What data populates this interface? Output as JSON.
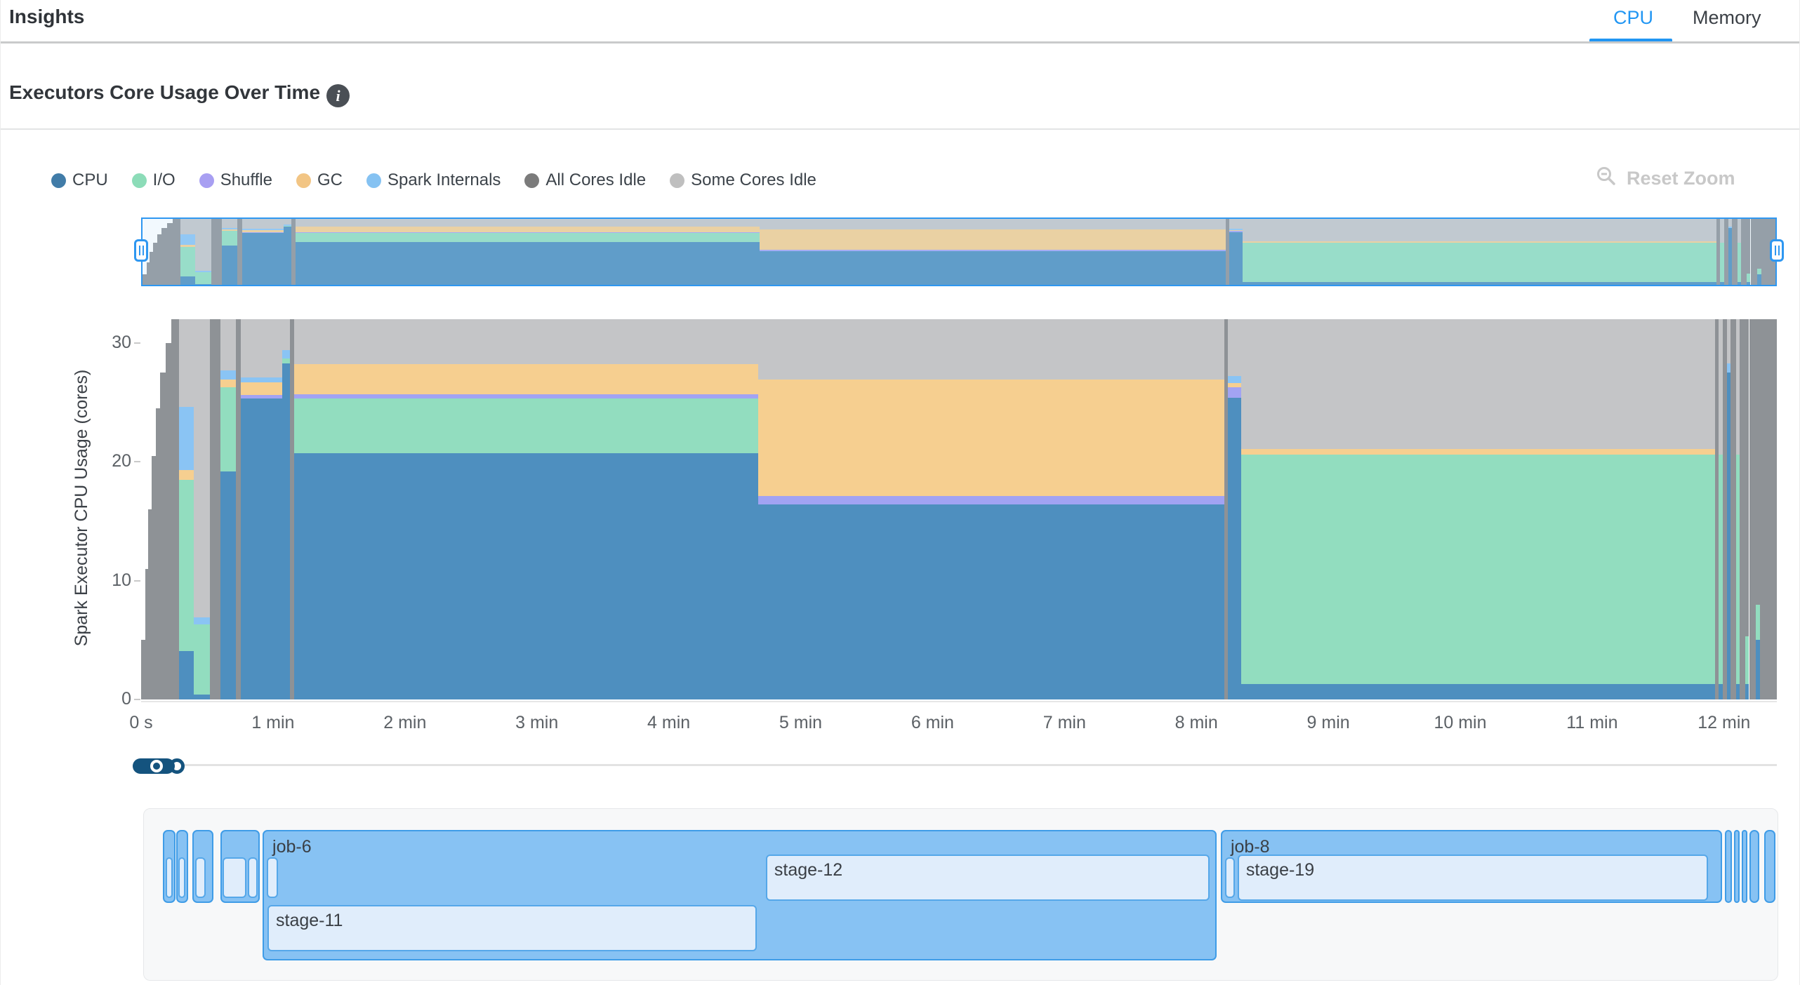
{
  "header": {
    "title": "Insights",
    "tabs": [
      {
        "label": "CPU",
        "active": true
      },
      {
        "label": "Memory",
        "active": false
      }
    ]
  },
  "section": {
    "title": "Executors Core Usage Over Time",
    "info_glyph": "i"
  },
  "toolbar": {
    "reset_zoom_label": "Reset Zoom"
  },
  "colors": {
    "accent_blue": "#2196f3",
    "brush_border": "#2e97f1",
    "toggle": "#14537e",
    "job_fill": "#87c2f3",
    "job_border": "#3f9ce7",
    "stage_fill": "#e0edfb",
    "stage_border": "#55a7e9"
  },
  "chart_data": {
    "type": "area",
    "stacked": true,
    "title": "Executors Core Usage Over Time",
    "ylabel": "Spark Executor CPU Usage (cores)",
    "xlabel": "",
    "ylim": [
      0,
      32
    ],
    "total_cores": 32,
    "grid": false,
    "legend_position": "top-left",
    "yticks": [
      0,
      10,
      20,
      30
    ],
    "xticks": [
      {
        "min": 0,
        "label": "0 s"
      },
      {
        "min": 1,
        "label": "1 min"
      },
      {
        "min": 2,
        "label": "2 min"
      },
      {
        "min": 3,
        "label": "3 min"
      },
      {
        "min": 4,
        "label": "4 min"
      },
      {
        "min": 5,
        "label": "5 min"
      },
      {
        "min": 6,
        "label": "6 min"
      },
      {
        "min": 7,
        "label": "7 min"
      },
      {
        "min": 8,
        "label": "8 min"
      },
      {
        "min": 9,
        "label": "9 min"
      },
      {
        "min": 10,
        "label": "10 min"
      },
      {
        "min": 11,
        "label": "11 min"
      },
      {
        "min": 12,
        "label": "12 min"
      }
    ],
    "series": [
      {
        "key": "cpu",
        "name": "CPU",
        "color": "#4e8fbf",
        "legend_color": "#417ca8"
      },
      {
        "key": "io",
        "name": "I/O",
        "color": "#92ddbf",
        "legend_color": "#8cdcb8"
      },
      {
        "key": "shuffle",
        "name": "Shuffle",
        "color": "#a2a3f3",
        "legend_color": "#a89ff2"
      },
      {
        "key": "gc",
        "name": "GC",
        "color": "#f6cf90",
        "legend_color": "#f2c584"
      },
      {
        "key": "internals",
        "name": "Spark Internals",
        "color": "#8ac4f4",
        "legend_color": "#85c2f2"
      },
      {
        "key": "all_idle",
        "name": "All Cores Idle",
        "color": "#8e9296",
        "legend_color": "#7b7b7b"
      },
      {
        "key": "some_idle",
        "name": "Some Cores Idle",
        "color": "#c4c5c7",
        "legend_color": "#bfbfbf"
      }
    ],
    "segments": [
      {
        "start": 0.0,
        "end": 0.03,
        "values": {
          "all_idle": 5
        }
      },
      {
        "start": 0.03,
        "end": 0.055,
        "values": {
          "all_idle": 11
        }
      },
      {
        "start": 0.055,
        "end": 0.08,
        "values": {
          "all_idle": 16
        }
      },
      {
        "start": 0.08,
        "end": 0.11,
        "values": {
          "all_idle": 20.5
        }
      },
      {
        "start": 0.11,
        "end": 0.145,
        "values": {
          "all_idle": 24.5
        }
      },
      {
        "start": 0.145,
        "end": 0.185,
        "values": {
          "all_idle": 27.5
        }
      },
      {
        "start": 0.185,
        "end": 0.23,
        "values": {
          "all_idle": 30
        }
      },
      {
        "start": 0.23,
        "end": 0.29,
        "values": {
          "all_idle": 32
        }
      },
      {
        "start": 0.29,
        "end": 0.4,
        "values": {
          "cpu": 4.1,
          "io": 14.4,
          "gc": 0.8,
          "internals": 5.3,
          "some_idle": 7.4
        }
      },
      {
        "start": 0.4,
        "end": 0.52,
        "values": {
          "cpu": 0.4,
          "io": 5.9,
          "internals": 0.6,
          "some_idle": 25.1
        }
      },
      {
        "start": 0.52,
        "end": 0.6,
        "values": {
          "all_idle": 32
        }
      },
      {
        "start": 0.6,
        "end": 0.72,
        "values": {
          "cpu": 19.2,
          "io": 7.1,
          "gc": 0.6,
          "internals": 0.8,
          "some_idle": 4.3
        }
      },
      {
        "start": 0.72,
        "end": 0.755,
        "values": {
          "all_idle": 32
        }
      },
      {
        "start": 0.755,
        "end": 1.07,
        "values": {
          "cpu": 25.3,
          "shuffle": 0.3,
          "gc": 1.1,
          "internals": 0.4,
          "some_idle": 4.9
        }
      },
      {
        "start": 1.07,
        "end": 1.13,
        "values": {
          "cpu": 28.3,
          "io": 0.4,
          "internals": 0.7,
          "some_idle": 2.6
        }
      },
      {
        "start": 1.13,
        "end": 1.16,
        "values": {
          "all_idle": 32
        }
      },
      {
        "start": 1.16,
        "end": 4.68,
        "values": {
          "cpu": 20.7,
          "io": 4.65,
          "shuffle": 0.35,
          "gc": 2.5,
          "some_idle": 3.8
        }
      },
      {
        "start": 4.68,
        "end": 8.21,
        "values": {
          "cpu": 16.4,
          "shuffle": 0.7,
          "gc": 9.8,
          "some_idle": 5.1
        }
      },
      {
        "start": 8.21,
        "end": 8.24,
        "values": {
          "all_idle": 32
        }
      },
      {
        "start": 8.24,
        "end": 8.34,
        "values": {
          "cpu": 25.4,
          "shuffle": 0.9,
          "gc": 0.3,
          "internals": 0.6,
          "some_idle": 4.8
        }
      },
      {
        "start": 8.34,
        "end": 11.93,
        "values": {
          "cpu": 1.3,
          "io": 19.3,
          "gc": 0.5,
          "some_idle": 10.9
        }
      },
      {
        "start": 11.93,
        "end": 11.96,
        "values": {
          "all_idle": 32
        }
      },
      {
        "start": 11.96,
        "end": 11.99,
        "values": {
          "cpu": 1.3,
          "io": 19.3,
          "some_idle": 11.4
        }
      },
      {
        "start": 11.99,
        "end": 12.02,
        "values": {
          "all_idle": 32
        }
      },
      {
        "start": 12.02,
        "end": 12.05,
        "values": {
          "cpu": 27.5,
          "internals": 0.8,
          "some_idle": 3.7
        }
      },
      {
        "start": 12.05,
        "end": 12.09,
        "values": {
          "all_idle": 32
        }
      },
      {
        "start": 12.09,
        "end": 12.12,
        "values": {
          "cpu": 1.3,
          "io": 19.3,
          "some_idle": 11.4
        }
      },
      {
        "start": 12.12,
        "end": 12.16,
        "values": {
          "all_idle": 32
        }
      },
      {
        "start": 12.16,
        "end": 12.19,
        "values": {
          "cpu": 1.3,
          "io": 4.0,
          "all_idle": 26.7
        }
      },
      {
        "start": 12.19,
        "end": 12.24,
        "values": {
          "all_idle": 32
        }
      },
      {
        "start": 12.24,
        "end": 12.27,
        "values": {
          "cpu": 5.0,
          "io": 3.0,
          "all_idle": 24.0
        }
      },
      {
        "start": 12.27,
        "end": 12.4,
        "values": {
          "all_idle": 32
        }
      }
    ]
  },
  "timeline": {
    "jobs": [
      {
        "label": "",
        "start": 0.165,
        "end": 0.261,
        "stages": [
          {
            "label": "",
            "start": 0.186,
            "end": 0.24
          }
        ]
      },
      {
        "label": "",
        "start": 0.266,
        "end": 0.357,
        "stages": [
          {
            "label": "",
            "start": 0.282,
            "end": 0.335
          }
        ]
      },
      {
        "label": "",
        "start": 0.389,
        "end": 0.548,
        "stages": [
          {
            "label": "",
            "start": 0.41,
            "end": 0.49
          }
        ]
      },
      {
        "label": "",
        "start": 0.601,
        "end": 0.9,
        "stages": [
          {
            "label": "",
            "start": 0.617,
            "end": 0.798
          },
          {
            "label": "",
            "start": 0.809,
            "end": 0.883
          }
        ]
      },
      {
        "label": "job-6",
        "start": 0.921,
        "end": 8.155,
        "two_row": true,
        "stages": [
          {
            "label": "",
            "start": 0.95,
            "end": 1.038
          },
          {
            "label": "stage-12",
            "start": 4.736,
            "end": 8.1
          },
          {
            "label": "stage-11",
            "start": 0.958,
            "end": 4.665,
            "row": 2
          }
        ]
      },
      {
        "label": "job-8",
        "start": 8.185,
        "end": 11.985,
        "stages": [
          {
            "label": "",
            "start": 8.217,
            "end": 8.291
          },
          {
            "label": "stage-19",
            "start": 8.312,
            "end": 11.88
          }
        ]
      },
      {
        "label": "",
        "start": 12.005,
        "end": 12.058,
        "stages": []
      },
      {
        "label": "",
        "start": 12.074,
        "end": 12.117,
        "stages": []
      },
      {
        "label": "",
        "start": 12.133,
        "end": 12.175,
        "stages": []
      },
      {
        "label": "",
        "start": 12.192,
        "end": 12.266,
        "stages": []
      },
      {
        "label": "",
        "start": 12.303,
        "end": 12.388,
        "stages": []
      }
    ]
  }
}
